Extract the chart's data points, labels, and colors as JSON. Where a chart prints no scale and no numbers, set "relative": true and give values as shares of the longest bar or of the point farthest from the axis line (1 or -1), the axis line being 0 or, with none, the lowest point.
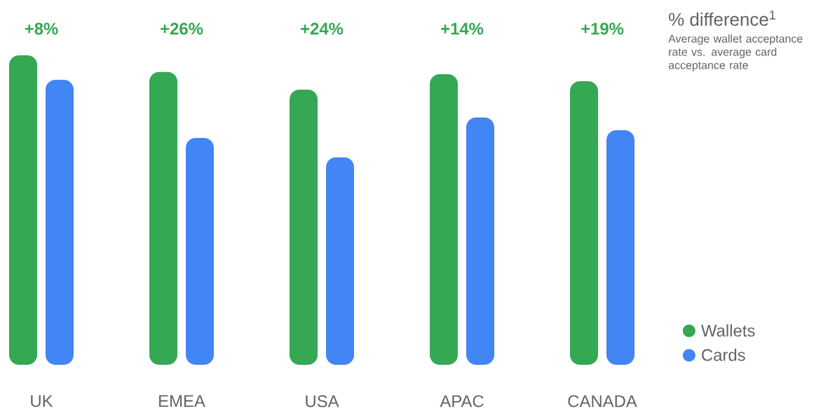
{
  "chart_data": {
    "type": "bar",
    "relative": true,
    "title": "% difference$^{1}$",
    "subtitle": "Average wallet acceptance rate vs. average card acceptance rate",
    "categories": [
      "UK",
      "EMEA",
      "USA",
      "APAC",
      "CANADA"
    ],
    "series": [
      {
        "name": "Wallets",
        "color": "#34a853",
        "values": [
          1,
          0.946,
          0.889,
          0.939,
          0.916
        ]
      },
      {
        "name": "Cards",
        "color": "#4285f4",
        "values": [
          0.921,
          0.733,
          0.67,
          0.799,
          0.758
        ]
      }
    ],
    "annotations": [
      "+8%",
      "+26%",
      "+24%",
      "+14%",
      "+19%"
    ],
    "legend": "right"
  }
}
